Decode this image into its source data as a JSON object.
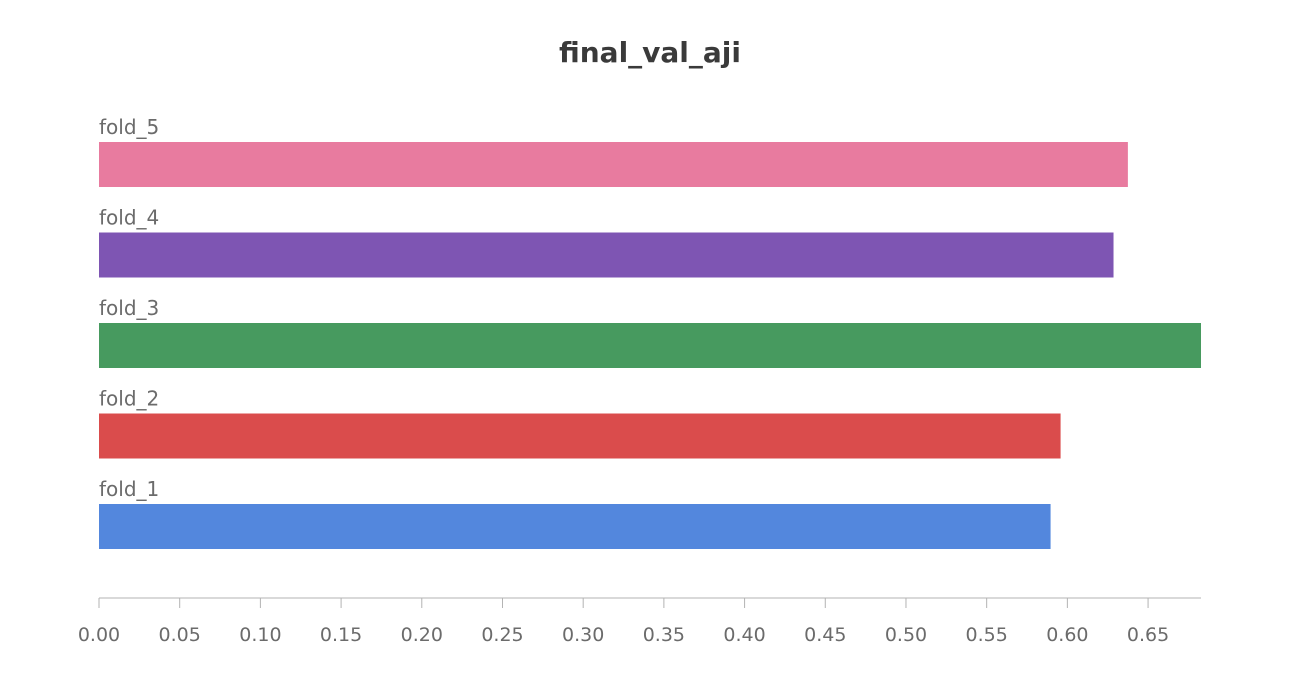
{
  "chart_data": {
    "type": "bar",
    "orientation": "horizontal",
    "title": "final_val_aji",
    "xlabel": "",
    "ylabel": "",
    "categories": [
      "fold_5",
      "fold_4",
      "fold_3",
      "fold_2",
      "fold_1"
    ],
    "values": [
      0.6375,
      0.6286,
      0.6828,
      0.5958,
      0.5896
    ],
    "colors": [
      "#e87b9f",
      "#7e55b3",
      "#479a5f",
      "#da4c4c",
      "#5387dd"
    ],
    "xlim": [
      0,
      0.6828
    ],
    "xticks": [
      "0.00",
      "0.05",
      "0.10",
      "0.15",
      "0.20",
      "0.25",
      "0.30",
      "0.35",
      "0.40",
      "0.45",
      "0.50",
      "0.55",
      "0.60",
      "0.65"
    ],
    "grid": false,
    "legend": "none"
  }
}
